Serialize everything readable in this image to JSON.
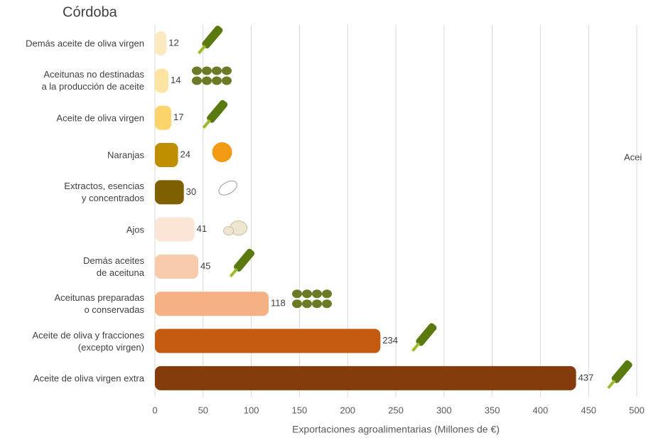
{
  "chart_data": {
    "type": "bar",
    "orientation": "horizontal",
    "title": "Córdoba",
    "x_label": "Exportaciones agroalimentarias (Millones de €)",
    "annotation": "Acei",
    "categories": [
      "Demás aceite de oliva virgen",
      "Aceitunas no destinadas\na la producción de aceite",
      "Aceite de oliva virgen",
      "Naranjas",
      "Extractos, esencias\ny concentrados",
      "Ajos",
      "Demás aceites\nde aceituna",
      "Aceitunas preparadas\no conservadas",
      "Aceite de oliva y fracciones\n(excepto virgen)",
      "Aceite de oliva virgen extra"
    ],
    "values": [
      12,
      14,
      17,
      24,
      30,
      41,
      45,
      118,
      234,
      437
    ],
    "colors": [
      "#fde9bf",
      "#fde4a2",
      "#fbd56c",
      "#bf8f00",
      "#7f6000",
      "#fbe5d6",
      "#f8cbad",
      "#f4b183",
      "#c55a11",
      "#843c0c"
    ],
    "xlim": [
      0,
      500
    ],
    "xticks": [
      0,
      50,
      100,
      150,
      200,
      250,
      300,
      350,
      400,
      450,
      500
    ],
    "grid": true
  }
}
